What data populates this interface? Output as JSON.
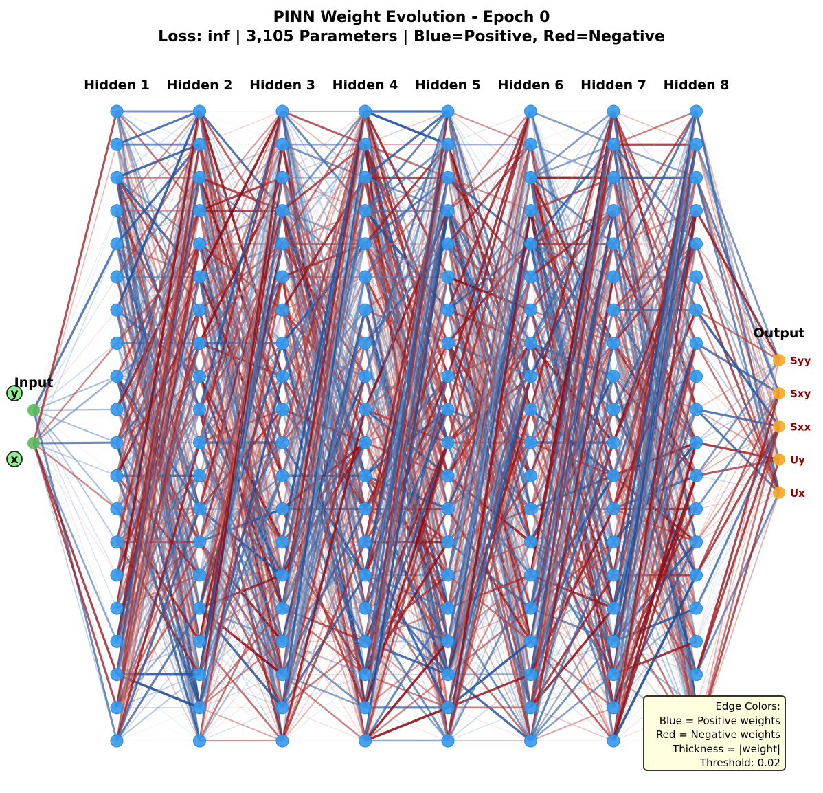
{
  "title_line1": "PINN Weight Evolution - Epoch 0",
  "title_line2": "Loss: inf | 3,105 Parameters | Blue=Positive, Red=Negative",
  "input_label": "Input",
  "output_label": "Output",
  "input_nodes": [
    "y",
    "x"
  ],
  "hidden_layers": [
    {
      "label": "Hidden 1",
      "neurons": 20
    },
    {
      "label": "Hidden 2",
      "neurons": 20
    },
    {
      "label": "Hidden 3",
      "neurons": 20
    },
    {
      "label": "Hidden 4",
      "neurons": 20
    },
    {
      "label": "Hidden 5",
      "neurons": 20
    },
    {
      "label": "Hidden 6",
      "neurons": 20
    },
    {
      "label": "Hidden 7",
      "neurons": 20
    },
    {
      "label": "Hidden 8",
      "neurons": 20
    }
  ],
  "output_nodes": [
    "Syy",
    "Sxy",
    "Sxx",
    "Uy",
    "Ux"
  ],
  "legend": {
    "heading": "Edge Colors:",
    "positive": "Blue = Positive weights",
    "negative": "Red = Negative weights",
    "thickness": "Thickness = |weight|",
    "threshold": "Threshold: 0.02"
  },
  "colors": {
    "positive_edge": "#1f5fa8",
    "negative_edge": "#d62728",
    "hidden_node": "#3399ee",
    "input_node": "#5cb85c",
    "output_node": "#f5a623",
    "output_label": "#8b0000",
    "input_tag_fill": "#90ee90"
  }
}
